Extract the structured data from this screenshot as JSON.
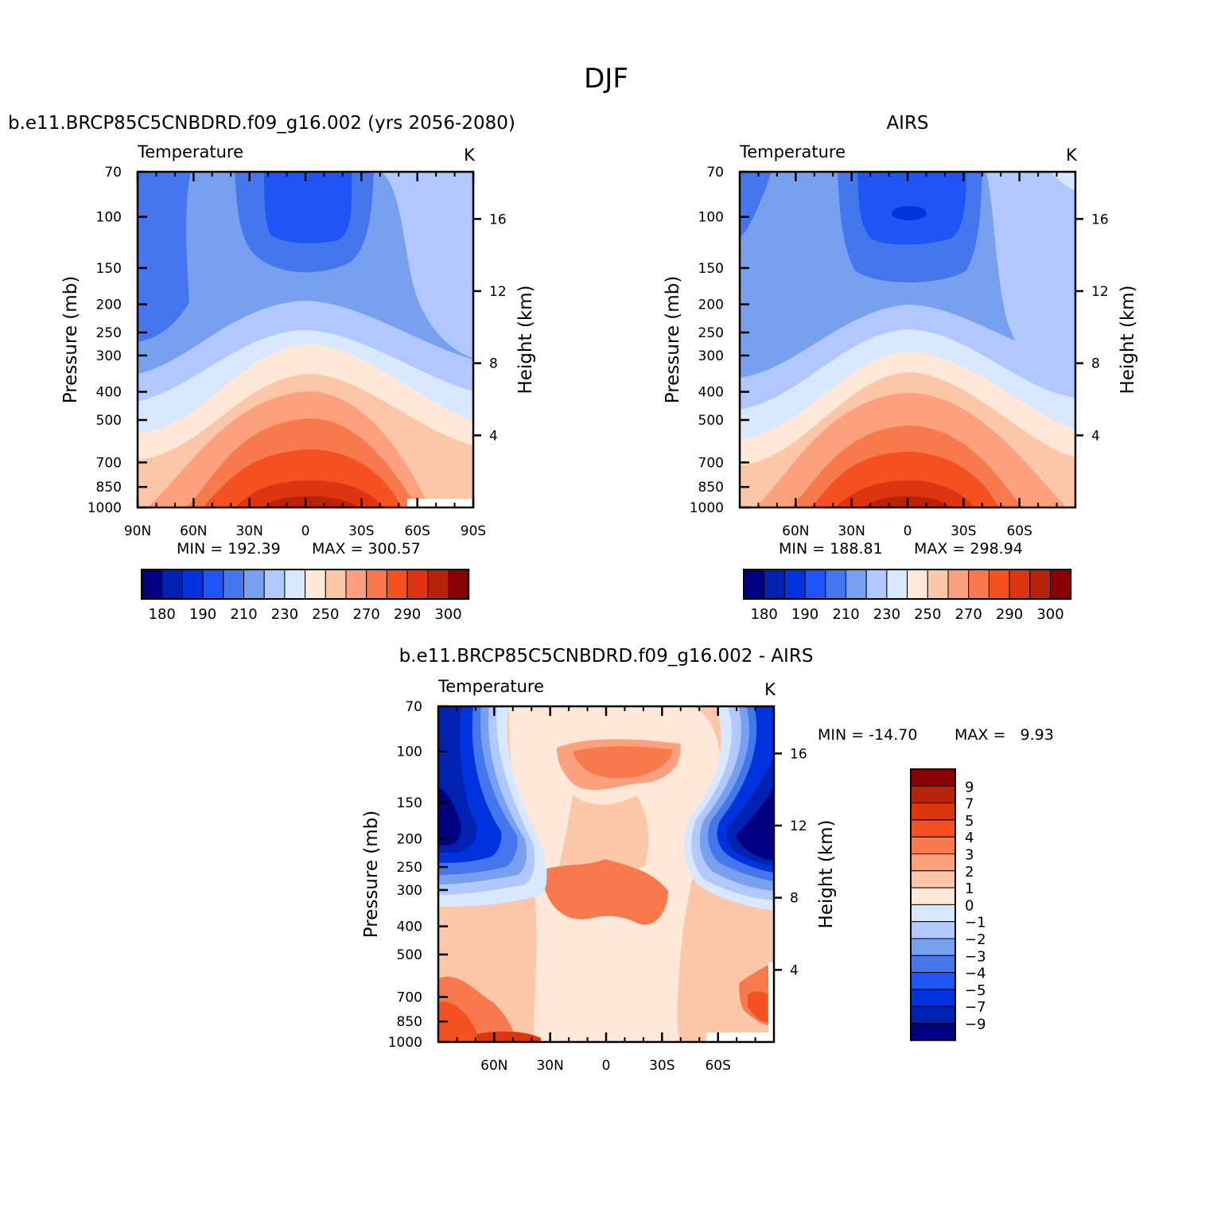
{
  "figure": {
    "title": "DJF"
  },
  "colors": {
    "abs_scale": [
      "#000080",
      "#0022b3",
      "#0033dd",
      "#1f55f5",
      "#4477ee",
      "#77a0ee",
      "#b0c8ff",
      "#d8e8ff",
      "#ffe8d8",
      "#fcc6a8",
      "#fca07e",
      "#f87a4c",
      "#f45020",
      "#dd3510",
      "#b82208",
      "#880000"
    ],
    "diff_scale": [
      "#000080",
      "#0022b3",
      "#0033dd",
      "#1f55f5",
      "#4477ee",
      "#77a0ee",
      "#b0c8ff",
      "#d8e8ff",
      "#ffe8d8",
      "#fcc6a8",
      "#fca07e",
      "#f87a4c",
      "#f45020",
      "#dd3510",
      "#b82208",
      "#880000"
    ]
  },
  "chart_data": [
    {
      "type": "heatmap",
      "title": "b.e11.BRCP85C5CNBDRD.f09_g16.002 (yrs 2056-2080)",
      "variable": "Temperature",
      "units": "K",
      "ylabel": "Pressure (mb)",
      "y2label": "Height (km)",
      "x_ticks": [
        "90N",
        "60N",
        "30N",
        "0",
        "30S",
        "60S",
        "90S"
      ],
      "y_ticks": [
        "70",
        "100",
        "150",
        "200",
        "250",
        "300",
        "400",
        "500",
        "700",
        "850",
        "1000"
      ],
      "y2_ticks": [
        "16",
        "12",
        "8",
        "4"
      ],
      "min_label": "MIN = 192.39",
      "max_label": "MAX = 300.57",
      "colorbar_labels": [
        "180",
        "190",
        "210",
        "230",
        "250",
        "270",
        "290",
        "300"
      ]
    },
    {
      "type": "heatmap",
      "title": "AIRS",
      "variable": "Temperature",
      "units": "K",
      "ylabel": "Pressure (mb)",
      "y2label": "Height (km)",
      "x_ticks": [
        "60N",
        "30N",
        "0",
        "30S",
        "60S"
      ],
      "y_ticks": [
        "70",
        "100",
        "150",
        "200",
        "250",
        "300",
        "400",
        "500",
        "700",
        "850",
        "1000"
      ],
      "y2_ticks": [
        "16",
        "12",
        "8",
        "4"
      ],
      "min_label": "MIN = 188.81",
      "max_label": "MAX = 298.94",
      "colorbar_labels": [
        "180",
        "190",
        "210",
        "230",
        "250",
        "270",
        "290",
        "300"
      ]
    },
    {
      "type": "heatmap",
      "title": "b.e11.BRCP85C5CNBDRD.f09_g16.002 - AIRS",
      "variable": "Temperature",
      "units": "K",
      "ylabel": "Pressure (mb)",
      "y2label": "Height (km)",
      "x_ticks": [
        "60N",
        "30N",
        "0",
        "30S",
        "60S"
      ],
      "y_ticks": [
        "70",
        "100",
        "150",
        "200",
        "250",
        "300",
        "400",
        "500",
        "700",
        "850",
        "1000"
      ],
      "y2_ticks": [
        "16",
        "12",
        "8",
        "4"
      ],
      "min_label": "MIN = -14.70",
      "max_label": "MAX =   9.93",
      "colorbar_labels": [
        "9",
        "7",
        "5",
        "4",
        "3",
        "2",
        "1",
        "0",
        "-1",
        "-2",
        "-3",
        "-4",
        "-5",
        "-7",
        "-9"
      ]
    }
  ]
}
